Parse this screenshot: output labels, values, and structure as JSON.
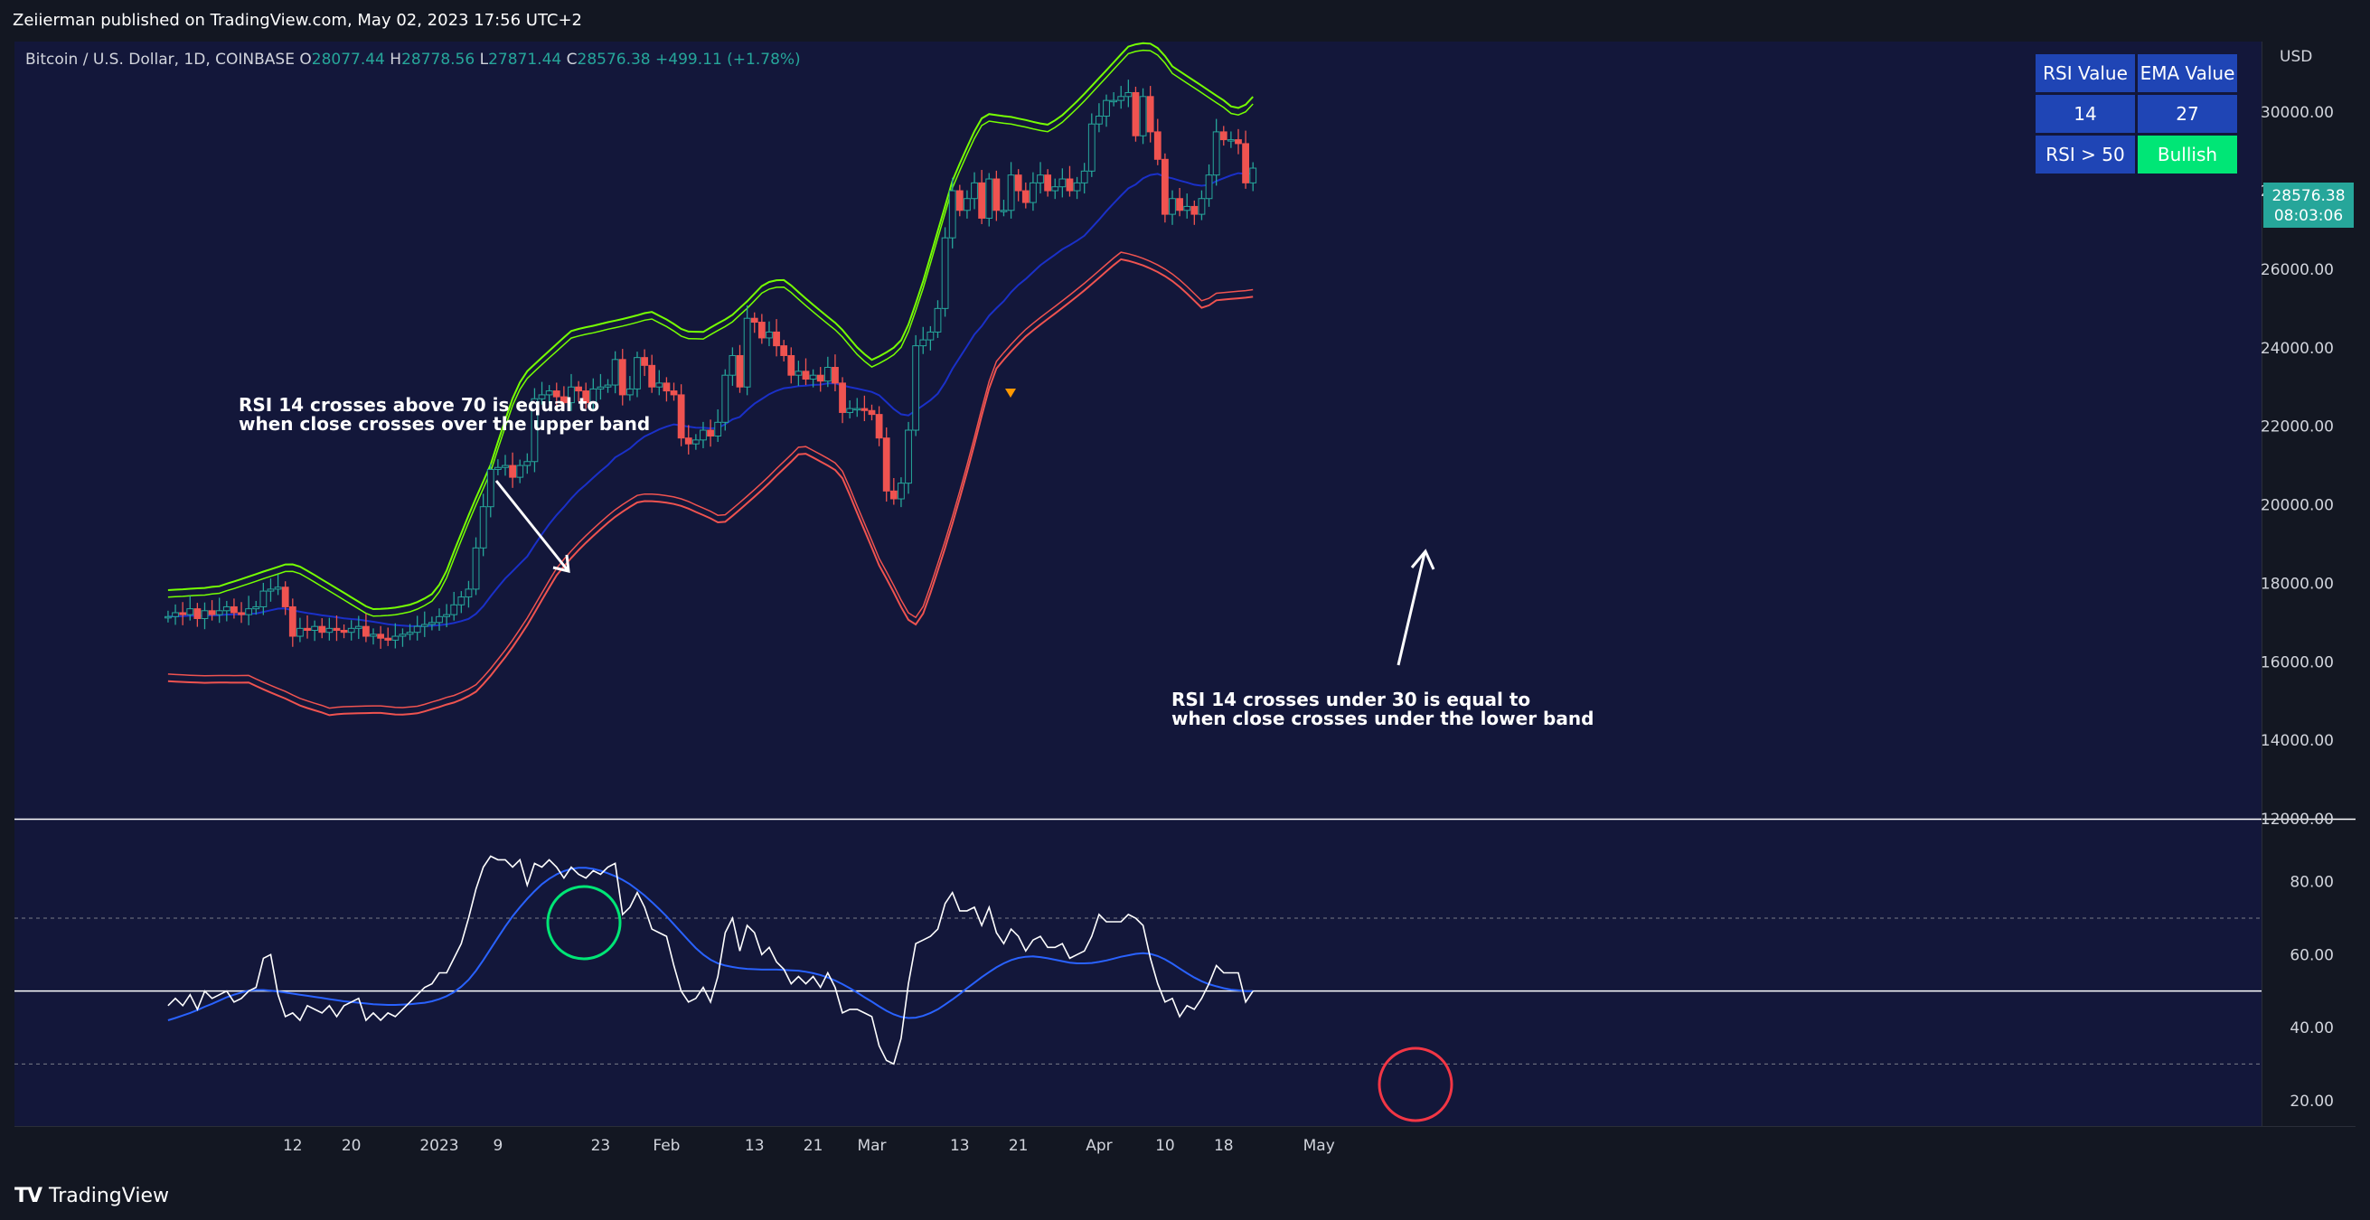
{
  "header": {
    "publisher": "Zeiierman published on TradingView.com, May 02, 2023 17:56 UTC+2"
  },
  "symbol": {
    "name": "Bitcoin / U.S. Dollar, 1D, COINBASE",
    "o_label": "O",
    "o": "28077.44",
    "h_label": "H",
    "h": "28778.56",
    "l_label": "L",
    "l": "27871.44",
    "c_label": "C",
    "c": "28576.38",
    "change": "+499.11 (+1.78%)"
  },
  "table": {
    "h1": "RSI Value",
    "h2": "EMA Value",
    "v1": "14",
    "v2": "27",
    "s1": "RSI > 50",
    "s2": "Bullish"
  },
  "annotations": {
    "upper_1": "RSI 14 crosses above 70 is equal to",
    "upper_2": "when close crosses over the upper band",
    "lower_1": "RSI 14 crosses under 30 is equal to",
    "lower_2": "when close crosses under the lower band"
  },
  "price_tag": {
    "price": "28576.38",
    "countdown": "08:03:06"
  },
  "footer": {
    "brand": "TradingView"
  },
  "colors": {
    "background": "#131722",
    "up": "#26a69a",
    "down": "#ef5350",
    "upper_band": "#76ff03",
    "lower_band": "#ef5350",
    "ema": "#1a237e",
    "rsi": "#ffffff",
    "rsi_ma": "#2962ff"
  },
  "chart_data": [
    {
      "type": "candlestick",
      "currency": "USD",
      "price_axis": [
        "12000.00",
        "14000.00",
        "16000.00",
        "18000.00",
        "20000.00",
        "22000.00",
        "24000.00",
        "26000.00",
        "28000.00",
        "30000.00"
      ],
      "ylim": [
        12000,
        31800
      ],
      "time_labels": [
        {
          "label": "12",
          "day": -20
        },
        {
          "label": "20",
          "day": -12
        },
        {
          "label": "2023",
          "day": 0
        },
        {
          "label": "9",
          "day": 8
        },
        {
          "label": "23",
          "day": 22
        },
        {
          "label": "Feb",
          "day": 31
        },
        {
          "label": "13",
          "day": 43
        },
        {
          "label": "21",
          "day": 51
        },
        {
          "label": "Mar",
          "day": 59
        },
        {
          "label": "13",
          "day": 71
        },
        {
          "label": "21",
          "day": 79
        },
        {
          "label": "Apr",
          "day": 90
        },
        {
          "label": "10",
          "day": 99
        },
        {
          "label": "18",
          "day": 107
        },
        {
          "label": "May",
          "day": 120
        }
      ],
      "series": [
        {
          "name": "Close",
          "closes": [
            17150,
            17250,
            17200,
            17350,
            17100,
            17300,
            17200,
            17300,
            17400,
            17250,
            17200,
            17350,
            17400,
            17800,
            17850,
            17900,
            17400,
            16650,
            16850,
            16800,
            16900,
            16750,
            16850,
            16800,
            16750,
            16850,
            16900,
            16650,
            16700,
            16600,
            16550,
            16650,
            16700,
            16750,
            16900,
            16950,
            17000,
            17150,
            17200,
            17450,
            17650,
            17850,
            18900,
            19950,
            20900,
            20950,
            21000,
            20700,
            21000,
            21100,
            22700,
            22800,
            22900,
            22750,
            22600,
            23000,
            22900,
            22600,
            22950,
            23000,
            23050,
            23700,
            22800,
            22950,
            23750,
            23550,
            23000,
            23100,
            22900,
            22800,
            21700,
            21550,
            21650,
            21900,
            21750,
            22100,
            23300,
            23800,
            23000,
            24750,
            24650,
            24250,
            24400,
            24050,
            23800,
            23300,
            23400,
            23200,
            23300,
            23150,
            23500,
            23100,
            22350,
            22450,
            22450,
            22400,
            22300,
            21700,
            20350,
            20150,
            20550,
            21900,
            24050,
            24200,
            24400,
            25000,
            26800,
            28000,
            27500,
            27800,
            28200,
            27300,
            28300,
            27500,
            27500,
            28400,
            28000,
            27700,
            28200,
            28400,
            28000,
            28100,
            28300,
            28000,
            28200,
            28500,
            29700,
            29900,
            30300,
            30300,
            30400,
            30500,
            29400,
            30400,
            29500,
            28800,
            27400,
            27800,
            27500,
            27600,
            27400,
            27800,
            28400,
            29500,
            29300,
            29300,
            29200,
            28200,
            28576
          ]
        }
      ]
    },
    {
      "type": "line",
      "name": "RSI",
      "axis": [
        "20.00",
        "40.00",
        "60.00",
        "80.00"
      ],
      "levels": [
        30,
        50,
        70
      ],
      "ylim": [
        13,
        97
      ],
      "rsi": [
        46,
        48,
        46,
        49,
        45,
        50,
        48,
        49,
        50,
        47,
        48,
        50,
        51,
        59,
        60,
        49,
        43,
        44,
        42,
        46,
        45,
        44,
        46,
        43,
        46,
        47,
        48,
        42,
        44,
        42,
        44,
        43,
        45,
        47,
        49,
        51,
        52,
        55,
        55,
        59,
        63,
        70,
        78,
        84,
        87,
        86,
        86,
        84,
        86,
        79,
        85,
        84,
        86,
        84,
        81,
        84,
        82,
        81,
        83,
        82,
        84,
        85,
        71,
        73,
        77,
        73,
        67,
        66,
        65,
        57,
        50,
        47,
        48,
        51,
        47,
        54,
        66,
        70,
        61,
        68,
        66,
        60,
        62,
        58,
        56,
        52,
        54,
        52,
        54,
        51,
        55,
        51,
        44,
        45,
        45,
        44,
        43,
        35,
        31,
        30,
        37,
        52,
        63,
        64,
        65,
        67,
        74,
        77,
        72,
        72,
        73,
        68,
        73,
        66,
        63,
        67,
        65,
        61,
        64,
        65,
        62,
        62,
        63,
        59,
        60,
        61,
        65,
        71,
        69,
        69,
        69,
        71,
        70,
        68,
        59,
        52,
        47,
        48,
        43,
        46,
        45,
        48,
        52,
        57,
        55,
        55,
        55,
        47,
        50
      ],
      "rsi_ma": [
        42,
        42.6,
        43.3,
        44,
        44.8,
        45.7,
        46.5,
        47.4,
        48.3,
        49,
        49.6,
        50.1,
        50.3,
        50.3,
        50.1,
        49.9,
        49.6,
        49.3,
        49,
        48.7,
        48.4,
        48.1,
        47.8,
        47.5,
        47.2,
        47,
        46.8,
        46.6,
        46.4,
        46.3,
        46.2,
        46.2,
        46.3,
        46.4,
        46.6,
        46.8,
        47.2,
        47.8,
        48.6,
        49.7,
        51.2,
        53.1,
        55.6,
        58.5,
        61.6,
        64.7,
        67.7,
        70.5,
        73,
        75.3,
        77.4,
        79.3,
        80.8,
        82,
        82.9,
        83.5,
        83.8,
        83.8,
        83.5,
        83,
        82.3,
        81.5,
        80.5,
        79.3,
        77.8,
        76.2,
        74.4,
        72.5,
        70.5,
        68.3,
        66.1,
        63.9,
        61.8,
        60,
        58.6,
        57.6,
        57,
        56.6,
        56.3,
        56.1,
        56,
        55.9,
        55.9,
        55.9,
        55.8,
        55.7,
        55.6,
        55.3,
        54.9,
        54.4,
        53.7,
        52.9,
        51.9,
        50.8,
        49.6,
        48.3,
        47.1,
        45.8,
        44.6,
        43.6,
        42.9,
        42.6,
        42.7,
        43.2,
        44,
        45,
        46.3,
        47.7,
        49.2,
        50.8,
        52.3,
        53.8,
        55.2,
        56.5,
        57.6,
        58.5,
        59.1,
        59.4,
        59.5,
        59.3,
        59,
        58.6,
        58.2,
        57.8,
        57.6,
        57.6,
        57.7,
        58,
        58.4,
        58.9,
        59.4,
        59.8,
        60.2,
        60.4,
        60.2,
        59.6,
        58.7,
        57.5,
        56.2,
        54.9,
        53.7,
        52.7,
        51.9,
        51.3,
        50.8,
        50.4,
        50.2,
        50,
        50
      ]
    }
  ]
}
